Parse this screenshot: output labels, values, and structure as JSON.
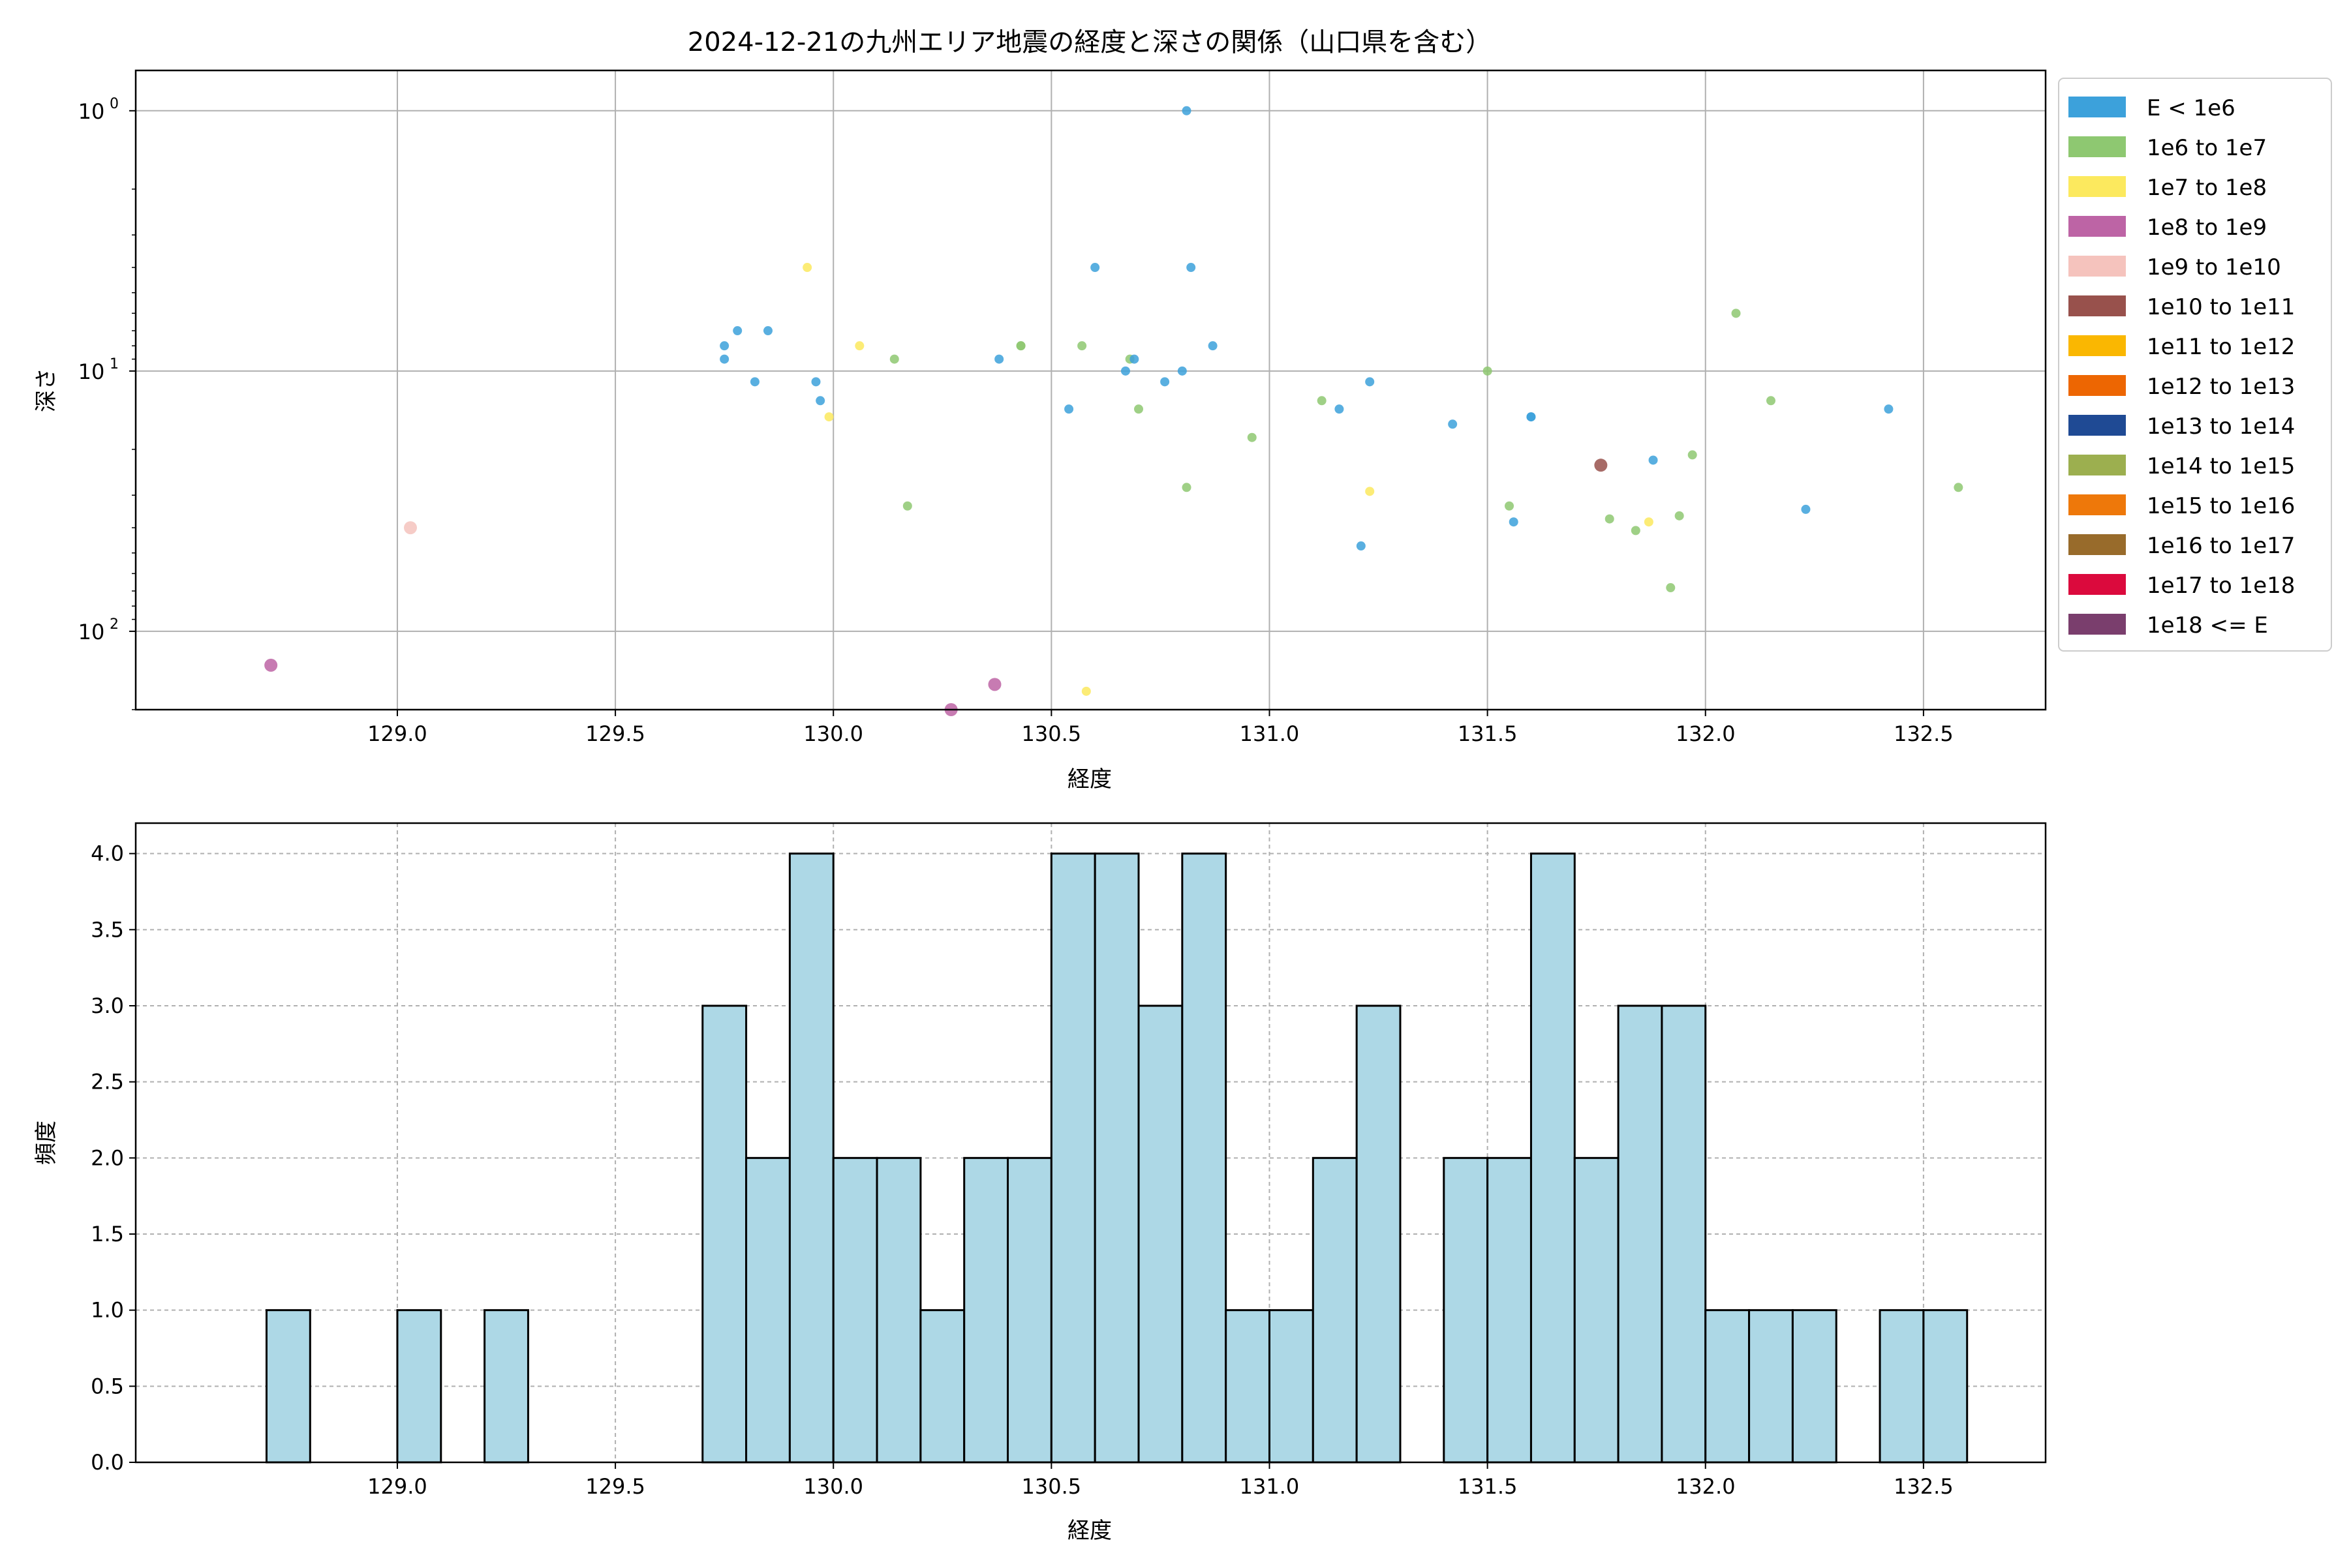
{
  "chart_data": [
    {
      "type": "scatter",
      "title": "2024-12-21の九州エリア地震の経度と深さの関係（山口県を含む）",
      "xlabel": "経度",
      "ylabel": "深さ",
      "xlim": [
        128.4,
        132.78
      ],
      "ylim": [
        1,
        0.7
      ],
      "y_scale": "log",
      "y_inverted": true,
      "grid": true,
      "xticks": [
        129.0,
        129.5,
        130.0,
        130.5,
        131.0,
        131.5,
        132.0,
        132.5
      ],
      "xtick_labels": [
        "129.0",
        "129.5",
        "130.0",
        "130.5",
        "131.0",
        "131.5",
        "132.0",
        "132.5"
      ],
      "yticks": [
        1,
        10,
        100
      ],
      "ytick_labels": [
        "10^0",
        "10^1",
        "10^2"
      ],
      "legend_position": "outside-right",
      "legend": [
        {
          "label": "E < 1e6",
          "color": "#3ca1db"
        },
        {
          "label": "1e6 to 1e7",
          "color": "#8ec871"
        },
        {
          "label": "1e7 to 1e8",
          "color": "#fce95e"
        },
        {
          "label": "1e8 to 1e9",
          "color": "#bd64a5"
        },
        {
          "label": "1e9 to 1e10",
          "color": "#f5c3bd"
        },
        {
          "label": "1e10 to 1e11",
          "color": "#98514c"
        },
        {
          "label": "1e11 to 1e12",
          "color": "#fab701"
        },
        {
          "label": "1e12 to 1e13",
          "color": "#ed6602"
        },
        {
          "label": "1e13 to 1e14",
          "color": "#1f4a94"
        },
        {
          "label": "1e14 to 1e15",
          "color": "#9caf4f"
        },
        {
          "label": "1e15 to 1e16",
          "color": "#ee780a"
        },
        {
          "label": "1e16 to 1e17",
          "color": "#986b2b"
        },
        {
          "label": "1e17 to 1e18",
          "color": "#db0a3d"
        },
        {
          "label": "1e18 <= E",
          "color": "#7a3e6d"
        }
      ],
      "points": [
        {
          "x": 128.71,
          "y": 135,
          "c": 3,
          "s": 1
        },
        {
          "x": 129.03,
          "y": 40,
          "c": 4,
          "s": 1
        },
        {
          "x": 129.75,
          "y": 8,
          "c": 0
        },
        {
          "x": 129.75,
          "y": 9,
          "c": 0
        },
        {
          "x": 129.78,
          "y": 7,
          "c": 0
        },
        {
          "x": 129.82,
          "y": 11,
          "c": 0
        },
        {
          "x": 129.85,
          "y": 7,
          "c": 0
        },
        {
          "x": 129.94,
          "y": 4,
          "c": 2
        },
        {
          "x": 129.96,
          "y": 11,
          "c": 0
        },
        {
          "x": 129.97,
          "y": 13,
          "c": 0
        },
        {
          "x": 129.99,
          "y": 15,
          "c": 2
        },
        {
          "x": 130.06,
          "y": 8,
          "c": 2
        },
        {
          "x": 130.14,
          "y": 9,
          "c": 1
        },
        {
          "x": 130.17,
          "y": 33,
          "c": 1
        },
        {
          "x": 130.27,
          "y": 200,
          "c": 3,
          "s": 1
        },
        {
          "x": 130.37,
          "y": 160,
          "c": 3,
          "s": 1
        },
        {
          "x": 130.38,
          "y": 9,
          "c": 0
        },
        {
          "x": 130.43,
          "y": 8,
          "c": 1
        },
        {
          "x": 130.43,
          "y": 8,
          "c": 1
        },
        {
          "x": 130.54,
          "y": 14,
          "c": 0
        },
        {
          "x": 130.57,
          "y": 8,
          "c": 1
        },
        {
          "x": 130.58,
          "y": 170,
          "c": 2
        },
        {
          "x": 130.6,
          "y": 4,
          "c": 0
        },
        {
          "x": 130.67,
          "y": 10,
          "c": 0
        },
        {
          "x": 130.68,
          "y": 9,
          "c": 1
        },
        {
          "x": 130.69,
          "y": 9,
          "c": 0
        },
        {
          "x": 130.7,
          "y": 14,
          "c": 1
        },
        {
          "x": 130.76,
          "y": 11,
          "c": 0
        },
        {
          "x": 130.8,
          "y": 10,
          "c": 0
        },
        {
          "x": 130.81,
          "y": 28,
          "c": 1
        },
        {
          "x": 130.81,
          "y": 1,
          "c": 0
        },
        {
          "x": 130.82,
          "y": 4,
          "c": 0
        },
        {
          "x": 130.87,
          "y": 8,
          "c": 0
        },
        {
          "x": 130.96,
          "y": 18,
          "c": 1
        },
        {
          "x": 131.12,
          "y": 13,
          "c": 1
        },
        {
          "x": 131.16,
          "y": 14,
          "c": 0
        },
        {
          "x": 131.21,
          "y": 47,
          "c": 0
        },
        {
          "x": 131.23,
          "y": 11,
          "c": 0
        },
        {
          "x": 131.23,
          "y": 29,
          "c": 2
        },
        {
          "x": 131.42,
          "y": 16,
          "c": 0
        },
        {
          "x": 131.5,
          "y": 10,
          "c": 1
        },
        {
          "x": 131.55,
          "y": 33,
          "c": 1
        },
        {
          "x": 131.56,
          "y": 38,
          "c": 0
        },
        {
          "x": 131.6,
          "y": 15,
          "c": 0
        },
        {
          "x": 131.6,
          "y": 15,
          "c": 0
        },
        {
          "x": 131.76,
          "y": 23,
          "c": 5,
          "s": 1
        },
        {
          "x": 131.78,
          "y": 37,
          "c": 1
        },
        {
          "x": 131.84,
          "y": 41,
          "c": 1
        },
        {
          "x": 131.87,
          "y": 38,
          "c": 2
        },
        {
          "x": 131.88,
          "y": 22,
          "c": 0
        },
        {
          "x": 131.92,
          "y": 68,
          "c": 1
        },
        {
          "x": 131.94,
          "y": 36,
          "c": 1
        },
        {
          "x": 131.97,
          "y": 21,
          "c": 1
        },
        {
          "x": 132.07,
          "y": 6,
          "c": 1
        },
        {
          "x": 132.15,
          "y": 13,
          "c": 1
        },
        {
          "x": 132.23,
          "y": 34,
          "c": 0
        },
        {
          "x": 132.42,
          "y": 14,
          "c": 0
        },
        {
          "x": 132.58,
          "y": 28,
          "c": 1
        }
      ]
    },
    {
      "type": "bar",
      "title": "",
      "xlabel": "経度",
      "ylabel": "頻度",
      "xlim": [
        128.4,
        132.78
      ],
      "ylim": [
        0,
        4.2
      ],
      "grid": true,
      "grid_style": "dashed",
      "bar_color": "#add8e6",
      "xticks": [
        129.0,
        129.5,
        130.0,
        130.5,
        131.0,
        131.5,
        132.0,
        132.5
      ],
      "xtick_labels": [
        "129.0",
        "129.5",
        "130.0",
        "130.5",
        "131.0",
        "131.5",
        "132.0",
        "132.5"
      ],
      "yticks": [
        0,
        0.5,
        1,
        1.5,
        2,
        2.5,
        3,
        3.5,
        4
      ],
      "ytick_labels": [
        "0.0",
        "0.5",
        "1.0",
        "1.5",
        "2.0",
        "2.5",
        "3.0",
        "3.5",
        "4.0"
      ],
      "bin_start": 128.7,
      "bin_width": 0.1,
      "values": [
        1,
        0,
        0,
        1,
        0,
        1,
        0,
        0,
        0,
        0,
        3,
        2,
        4,
        2,
        2,
        1,
        2,
        2,
        4,
        4,
        3,
        4,
        1,
        1,
        2,
        3,
        0,
        2,
        2,
        4,
        2,
        3,
        3,
        1,
        1,
        1,
        0,
        1,
        1
      ]
    }
  ]
}
